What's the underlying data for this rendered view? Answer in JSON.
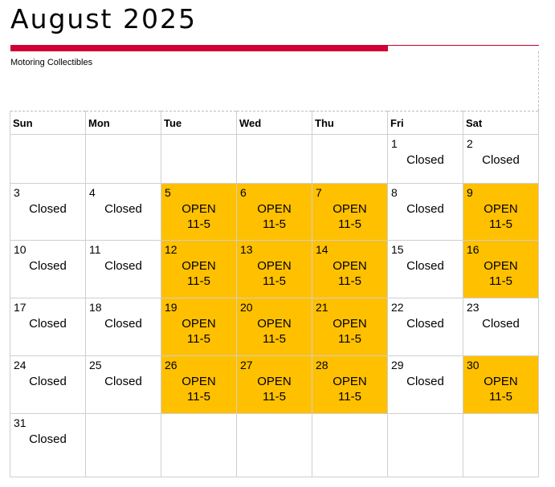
{
  "header": {
    "title": "August 2025",
    "subtitle": "Motoring Collectibles"
  },
  "colors": {
    "accent_red": "#d00035",
    "open_fill": "#ffc000",
    "grid_line": "#cfcfcf"
  },
  "calendar": {
    "weekdays": [
      "Sun",
      "Mon",
      "Tue",
      "Wed",
      "Thu",
      "Fri",
      "Sat"
    ],
    "weeks": [
      [
        {
          "day": "",
          "status": "",
          "hours": "",
          "open": false
        },
        {
          "day": "",
          "status": "",
          "hours": "",
          "open": false
        },
        {
          "day": "",
          "status": "",
          "hours": "",
          "open": false
        },
        {
          "day": "",
          "status": "",
          "hours": "",
          "open": false
        },
        {
          "day": "",
          "status": "",
          "hours": "",
          "open": false
        },
        {
          "day": "1",
          "status": "Closed",
          "hours": "",
          "open": false
        },
        {
          "day": "2",
          "status": "Closed",
          "hours": "",
          "open": false
        }
      ],
      [
        {
          "day": "3",
          "status": "Closed",
          "hours": "",
          "open": false
        },
        {
          "day": "4",
          "status": "Closed",
          "hours": "",
          "open": false
        },
        {
          "day": "5",
          "status": "OPEN",
          "hours": "11-5",
          "open": true
        },
        {
          "day": "6",
          "status": "OPEN",
          "hours": "11-5",
          "open": true
        },
        {
          "day": "7",
          "status": "OPEN",
          "hours": "11-5",
          "open": true
        },
        {
          "day": "8",
          "status": "Closed",
          "hours": "",
          "open": false
        },
        {
          "day": "9",
          "status": "OPEN",
          "hours": "11-5",
          "open": true
        }
      ],
      [
        {
          "day": "10",
          "status": "Closed",
          "hours": "",
          "open": false
        },
        {
          "day": "11",
          "status": "Closed",
          "hours": "",
          "open": false
        },
        {
          "day": "12",
          "status": "OPEN",
          "hours": "11-5",
          "open": true
        },
        {
          "day": "13",
          "status": "OPEN",
          "hours": "11-5",
          "open": true
        },
        {
          "day": "14",
          "status": "OPEN",
          "hours": "11-5",
          "open": true
        },
        {
          "day": "15",
          "status": "Closed",
          "hours": "",
          "open": false
        },
        {
          "day": "16",
          "status": "OPEN",
          "hours": "11-5",
          "open": true
        }
      ],
      [
        {
          "day": "17",
          "status": "Closed",
          "hours": "",
          "open": false
        },
        {
          "day": "18",
          "status": "Closed",
          "hours": "",
          "open": false
        },
        {
          "day": "19",
          "status": "OPEN",
          "hours": "11-5",
          "open": true
        },
        {
          "day": "20",
          "status": "OPEN",
          "hours": "11-5",
          "open": true
        },
        {
          "day": "21",
          "status": "OPEN",
          "hours": "11-5",
          "open": true
        },
        {
          "day": "22",
          "status": "Closed",
          "hours": "",
          "open": false
        },
        {
          "day": "23",
          "status": "Closed",
          "hours": "",
          "open": false
        }
      ],
      [
        {
          "day": "24",
          "status": "Closed",
          "hours": "",
          "open": false
        },
        {
          "day": "25",
          "status": "Closed",
          "hours": "",
          "open": false
        },
        {
          "day": "26",
          "status": "OPEN",
          "hours": "11-5",
          "open": true
        },
        {
          "day": "27",
          "status": "OPEN",
          "hours": "11-5",
          "open": true
        },
        {
          "day": "28",
          "status": "OPEN",
          "hours": "11-5",
          "open": true
        },
        {
          "day": "29",
          "status": "Closed",
          "hours": "",
          "open": false
        },
        {
          "day": "30",
          "status": "OPEN",
          "hours": "11-5",
          "open": true
        }
      ],
      [
        {
          "day": "31",
          "status": "Closed",
          "hours": "",
          "open": false
        },
        {
          "day": "",
          "status": "",
          "hours": "",
          "open": false
        },
        {
          "day": "",
          "status": "",
          "hours": "",
          "open": false
        },
        {
          "day": "",
          "status": "",
          "hours": "",
          "open": false
        },
        {
          "day": "",
          "status": "",
          "hours": "",
          "open": false
        },
        {
          "day": "",
          "status": "",
          "hours": "",
          "open": false
        },
        {
          "day": "",
          "status": "",
          "hours": "",
          "open": false
        }
      ]
    ]
  }
}
